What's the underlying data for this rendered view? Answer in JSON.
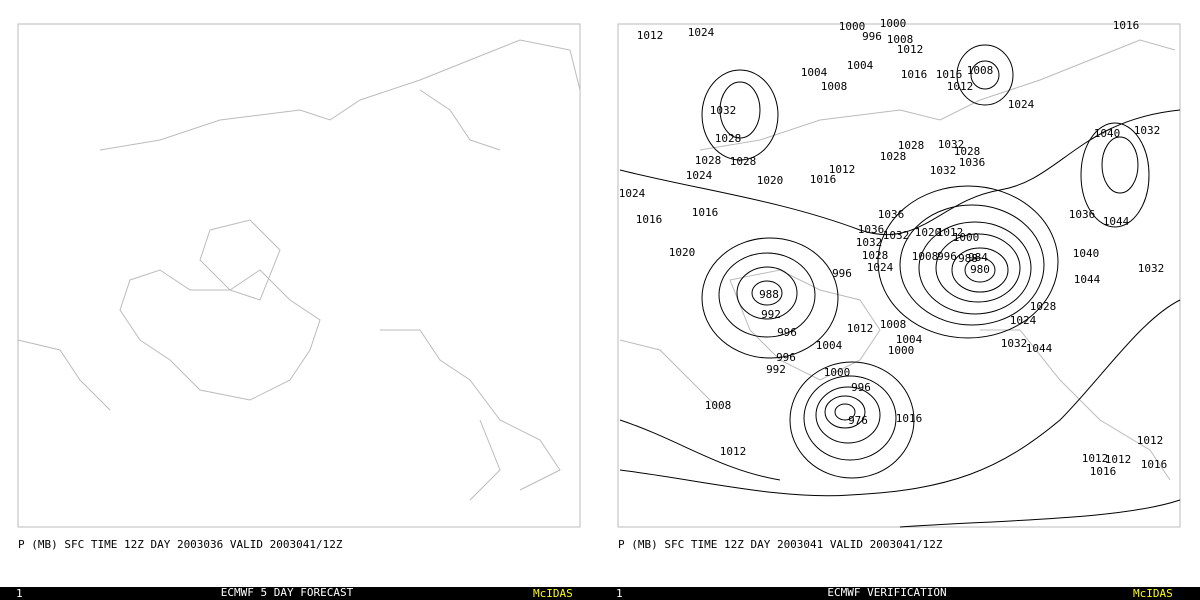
{
  "panels": [
    {
      "caption": "P (MB) SFC TIME 12Z DAY 2003036 VALID 2003041/12Z",
      "status": {
        "frame": "1",
        "title": "ECMWF 5 DAY FORECAST",
        "brand": "McIDAS"
      }
    },
    {
      "caption": "P (MB) SFC TIME 12Z DAY 2003041 VALID 2003041/12Z",
      "status": {
        "frame": "1",
        "title": "ECMWF VERIFICATION",
        "brand": "McIDAS"
      },
      "contour_labels": [
        "1012",
        "1024",
        "1000",
        "1000",
        "996",
        "1008",
        "1012",
        "1016",
        "1004",
        "1004",
        "1008",
        "1016",
        "1016",
        "1008",
        "1012",
        "1024",
        "1032",
        "1040",
        "1032",
        "1028",
        "1028",
        "1032",
        "1028",
        "1036",
        "1028",
        "1028",
        "1028",
        "1012",
        "1032",
        "1024",
        "1020",
        "1016",
        "1024",
        "1016",
        "1016",
        "1036",
        "1036",
        "1044",
        "1036",
        "1032",
        "1020",
        "1012",
        "1000",
        "1032",
        "1020",
        "1028",
        "1024",
        "1008",
        "996",
        "988",
        "984",
        "1040",
        "1032",
        "980",
        "996",
        "1044",
        "988",
        "992",
        "1028",
        "1024",
        "996",
        "1012",
        "1008",
        "1004",
        "1032",
        "1044",
        "1004",
        "1000",
        "996",
        "992",
        "1000",
        "996",
        "1008",
        "976",
        "1016",
        "1012",
        "1012",
        "1012",
        "1012",
        "1016",
        "1016"
      ]
    }
  ]
}
